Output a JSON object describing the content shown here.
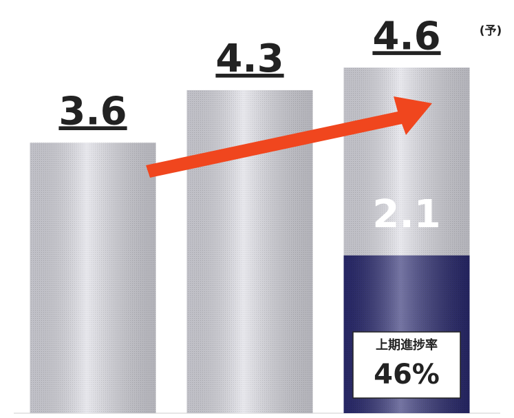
{
  "chart_data": {
    "type": "bar",
    "ylim": [
      0,
      5.5
    ],
    "series": [
      {
        "values": [
          3.6,
          4.3,
          4.6
        ],
        "color": "#dcdce4"
      },
      {
        "values": [
          null,
          null,
          2.1
        ],
        "color": "#2b2b72"
      }
    ],
    "annotation": "(予)",
    "progress": {
      "title": "上期進捗率",
      "value": 46,
      "value_label": "46%"
    }
  }
}
